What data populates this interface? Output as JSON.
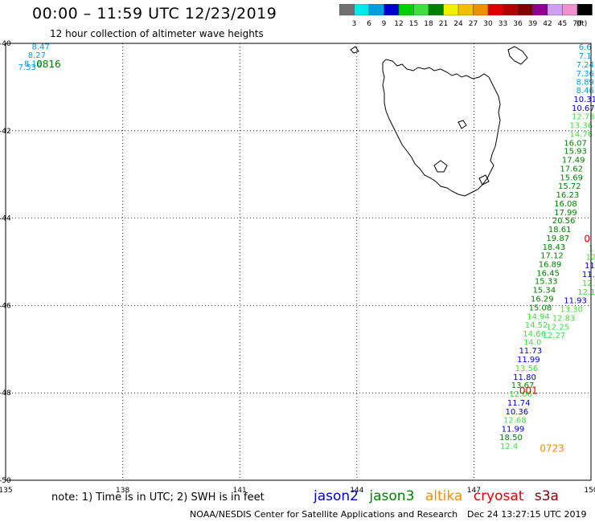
{
  "title": "00:00 – 11:59 UTC 12/23/2019",
  "subtitle": "12 hour collection of altimeter wave heights",
  "colorbar": {
    "unit": "(ft)",
    "ticks": [
      "3",
      "6",
      "9",
      "12",
      "15",
      "18",
      "21",
      "24",
      "27",
      "30",
      "33",
      "36",
      "39",
      "42",
      "45",
      "70"
    ],
    "colors": [
      "#707070",
      "#00e8e8",
      "#00a0e0",
      "#0000d0",
      "#00d000",
      "#40e040",
      "#008000",
      "#f0f000",
      "#f0c000",
      "#f09000",
      "#e00000",
      "#b00000",
      "#800000",
      "#900090",
      "#d0a0f0",
      "#f090d0",
      "#000000"
    ]
  },
  "axes": {
    "x_ticks": [
      "135",
      "138",
      "141",
      "144",
      "147",
      "150"
    ],
    "y_ticks": [
      "-40",
      "-42",
      "-44",
      "-46",
      "-48",
      "-50"
    ],
    "lon_range": [
      135,
      150
    ],
    "lat_range": [
      -50,
      -40
    ]
  },
  "times": [
    {
      "label": "0816",
      "color": "#008000",
      "lon": 136.1,
      "lat": -40.55
    },
    {
      "label": "0723",
      "color": "#f09000",
      "lon": 149.0,
      "lat": -49.35
    },
    {
      "label": "001",
      "color": "#e00000",
      "lon": 148.4,
      "lat": -48.02
    },
    {
      "label": "0",
      "color": "#e00000",
      "lon": 149.9,
      "lat": -44.55
    }
  ],
  "observations": [
    {
      "v": "8.47",
      "c": "#00a0e0",
      "lon": 135.9,
      "lat": -40.14
    },
    {
      "v": "8.27",
      "c": "#00a0e0",
      "lon": 135.8,
      "lat": -40.33
    },
    {
      "v": "8.16",
      "c": "#00a0e0",
      "lon": 135.7,
      "lat": -40.52
    },
    {
      "v": "7.53",
      "c": "#00a0e0",
      "lon": 135.55,
      "lat": -40.61
    },
    {
      "v": "6.6",
      "c": "#00a0e0",
      "lon": 149.85,
      "lat": -40.15
    },
    {
      "v": "7.1",
      "c": "#00a0e0",
      "lon": 149.85,
      "lat": -40.35
    },
    {
      "v": "7.24",
      "c": "#00a0e0",
      "lon": 149.85,
      "lat": -40.55
    },
    {
      "v": "7.36",
      "c": "#00a0e0",
      "lon": 149.85,
      "lat": -40.75
    },
    {
      "v": "8.89",
      "c": "#00a0e0",
      "lon": 149.85,
      "lat": -40.95
    },
    {
      "v": "8.46",
      "c": "#00a0e0",
      "lon": 149.85,
      "lat": -41.14
    },
    {
      "v": "10.31",
      "c": "#0000d0",
      "lon": 149.85,
      "lat": -41.34
    },
    {
      "v": "10.67",
      "c": "#0000d0",
      "lon": 149.8,
      "lat": -41.54
    },
    {
      "v": "12.78",
      "c": "#40e040",
      "lon": 149.8,
      "lat": -41.74
    },
    {
      "v": "13.36",
      "c": "#40e040",
      "lon": 149.75,
      "lat": -41.94
    },
    {
      "v": "14.76",
      "c": "#40e040",
      "lon": 149.75,
      "lat": -42.14
    },
    {
      "v": "16.07",
      "c": "#008000",
      "lon": 149.6,
      "lat": -42.34
    },
    {
      "v": "15.93",
      "c": "#008000",
      "lon": 149.6,
      "lat": -42.53
    },
    {
      "v": "17.49",
      "c": "#008000",
      "lon": 149.55,
      "lat": -42.73
    },
    {
      "v": "17.62",
      "c": "#008000",
      "lon": 149.5,
      "lat": -42.93
    },
    {
      "v": "15.69",
      "c": "#008000",
      "lon": 149.5,
      "lat": -43.13
    },
    {
      "v": "15.72",
      "c": "#008000",
      "lon": 149.45,
      "lat": -43.33
    },
    {
      "v": "16.23",
      "c": "#008000",
      "lon": 149.4,
      "lat": -43.53
    },
    {
      "v": "16.08",
      "c": "#008000",
      "lon": 149.35,
      "lat": -43.73
    },
    {
      "v": "17.99",
      "c": "#008000",
      "lon": 149.35,
      "lat": -43.93
    },
    {
      "v": "20.56",
      "c": "#008000",
      "lon": 149.3,
      "lat": -44.12
    },
    {
      "v": "18.61",
      "c": "#008000",
      "lon": 149.2,
      "lat": -44.32
    },
    {
      "v": "19.87",
      "c": "#008000",
      "lon": 149.15,
      "lat": -44.52
    },
    {
      "v": "18.43",
      "c": "#008000",
      "lon": 149.05,
      "lat": -44.72
    },
    {
      "v": "17.12",
      "c": "#008000",
      "lon": 149.0,
      "lat": -44.92
    },
    {
      "v": "16.89",
      "c": "#008000",
      "lon": 148.95,
      "lat": -45.12
    },
    {
      "v": "16.45",
      "c": "#008000",
      "lon": 148.9,
      "lat": -45.32
    },
    {
      "v": "15.33",
      "c": "#008000",
      "lon": 148.85,
      "lat": -45.51
    },
    {
      "v": "15.34",
      "c": "#008000",
      "lon": 148.8,
      "lat": -45.71
    },
    {
      "v": "16.29",
      "c": "#008000",
      "lon": 148.75,
      "lat": -45.91
    },
    {
      "v": "15.08",
      "c": "#008000",
      "lon": 148.7,
      "lat": -46.11
    },
    {
      "v": "14.94",
      "c": "#40e040",
      "lon": 148.65,
      "lat": -46.31
    },
    {
      "v": "14.52",
      "c": "#40e040",
      "lon": 148.6,
      "lat": -46.51
    },
    {
      "v": "14.66",
      "c": "#40e040",
      "lon": 148.55,
      "lat": -46.71
    },
    {
      "v": "14.0",
      "c": "#40e040",
      "lon": 148.5,
      "lat": -46.9
    },
    {
      "v": "11.73",
      "c": "#0000d0",
      "lon": 148.45,
      "lat": -47.1
    },
    {
      "v": "11.99",
      "c": "#0000d0",
      "lon": 148.4,
      "lat": -47.3
    },
    {
      "v": "13.56",
      "c": "#40e040",
      "lon": 148.35,
      "lat": -47.5
    },
    {
      "v": "11.80",
      "c": "#0000d0",
      "lon": 148.3,
      "lat": -47.7
    },
    {
      "v": "13.67",
      "c": "#008000",
      "lon": 148.25,
      "lat": -47.89
    },
    {
      "v": "12.06",
      "c": "#40e040",
      "lon": 148.2,
      "lat": -48.09
    },
    {
      "v": "11.74",
      "c": "#0000d0",
      "lon": 148.15,
      "lat": -48.29
    },
    {
      "v": "10.36",
      "c": "#0000d0",
      "lon": 148.1,
      "lat": -48.49
    },
    {
      "v": "12.68",
      "c": "#40e040",
      "lon": 148.05,
      "lat": -48.69
    },
    {
      "v": "11.99",
      "c": "#0000d0",
      "lon": 148.0,
      "lat": -48.89
    },
    {
      "v": "18.50",
      "c": "#008000",
      "lon": 147.95,
      "lat": -49.08
    },
    {
      "v": "12.4",
      "c": "#40e040",
      "lon": 147.9,
      "lat": -49.28
    },
    {
      "v": "1",
      "c": "#40e040",
      "lon": 150.0,
      "lat": -44.75
    },
    {
      "v": "12",
      "c": "#40e040",
      "lon": 150.0,
      "lat": -44.95
    },
    {
      "v": "11.",
      "c": "#0000d0",
      "lon": 150.0,
      "lat": -45.15
    },
    {
      "v": "11.9",
      "c": "#0000d0",
      "lon": 150.0,
      "lat": -45.35
    },
    {
      "v": "12.5",
      "c": "#40e040",
      "lon": 150.0,
      "lat": -45.55
    },
    {
      "v": "12.15",
      "c": "#40e040",
      "lon": 149.95,
      "lat": -45.75
    },
    {
      "v": "11.93",
      "c": "#0000d0",
      "lon": 149.6,
      "lat": -45.95
    },
    {
      "v": "13.30",
      "c": "#40e040",
      "lon": 149.5,
      "lat": -46.15
    },
    {
      "v": "12.83",
      "c": "#40e040",
      "lon": 149.3,
      "lat": -46.35
    },
    {
      "v": "12.25",
      "c": "#40e040",
      "lon": 149.15,
      "lat": -46.55
    },
    {
      "v": "12.27",
      "c": "#40e040",
      "lon": 149.05,
      "lat": -46.75
    }
  ],
  "note": "note: 1) Time is in UTC; 2) SWH is in feet",
  "satellites": [
    {
      "name": "jason2",
      "color": "#0000d0"
    },
    {
      "name": "jason3",
      "color": "#008000"
    },
    {
      "name": "altika",
      "color": "#f09000"
    },
    {
      "name": "cryosat",
      "color": "#e00000"
    },
    {
      "name": "s3a",
      "color": "#800000"
    }
  ],
  "credit": "NOAA/NESDIS Center for Satellite Applications and Research",
  "timestamp": "Dec 24 13:27:15 UTC 2019"
}
